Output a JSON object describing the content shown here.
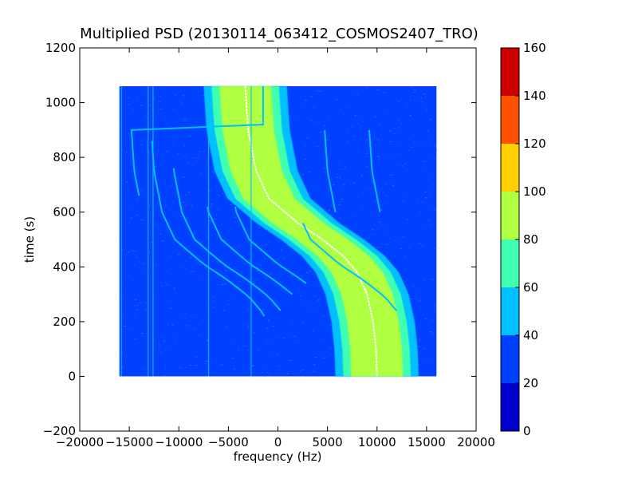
{
  "chart_data": {
    "type": "heatmap",
    "title": "Multiplied PSD (20130114_063412_COSMOS2407_TRO)",
    "xlabel": "frequency (Hz)",
    "ylabel": "time (s)",
    "xlim": [
      -20000,
      20000
    ],
    "ylim": [
      -200,
      1200
    ],
    "xticks": [
      -20000,
      -15000,
      -10000,
      -5000,
      0,
      5000,
      10000,
      15000,
      20000
    ],
    "xtick_labels": [
      "−20000",
      "−15000",
      "−10000",
      "−5000",
      "0",
      "5000",
      "10000",
      "15000",
      "20000"
    ],
    "yticks": [
      -200,
      0,
      200,
      400,
      600,
      800,
      1000,
      1200
    ],
    "ytick_labels": [
      "−200",
      "0",
      "200",
      "400",
      "600",
      "800",
      "1000",
      "1200"
    ],
    "data_extent": {
      "freq_range": [
        -16000,
        16000
      ],
      "time_range": [
        0,
        1060
      ]
    },
    "background_level_band": [
      20,
      40
    ],
    "main_trace": {
      "description_levels": [
        "40-60",
        "60-80",
        "80-100"
      ],
      "center_points": [
        {
          "time": 1060,
          "freq": -3300
        },
        {
          "time": 900,
          "freq": -3000
        },
        {
          "time": 750,
          "freq": -2200
        },
        {
          "time": 650,
          "freq": -900
        },
        {
          "time": 560,
          "freq": 2000
        },
        {
          "time": 500,
          "freq": 4500
        },
        {
          "time": 440,
          "freq": 6600
        },
        {
          "time": 380,
          "freq": 8000
        },
        {
          "time": 300,
          "freq": 9000
        },
        {
          "time": 200,
          "freq": 9600
        },
        {
          "time": 100,
          "freq": 9900
        },
        {
          "time": 0,
          "freq": 10000
        }
      ]
    },
    "colorbar": {
      "levels": [
        0,
        20,
        40,
        60,
        80,
        100,
        120,
        140,
        160
      ],
      "tick_labels": [
        "0",
        "20",
        "40",
        "60",
        "80",
        "100",
        "120",
        "140",
        "160"
      ],
      "colors": [
        "#0000cd",
        "#0040ff",
        "#00c0ff",
        "#40ffb0",
        "#b0ff40",
        "#ffd000",
        "#ff5000",
        "#cd0000"
      ]
    },
    "grid": false,
    "legend": "none"
  }
}
